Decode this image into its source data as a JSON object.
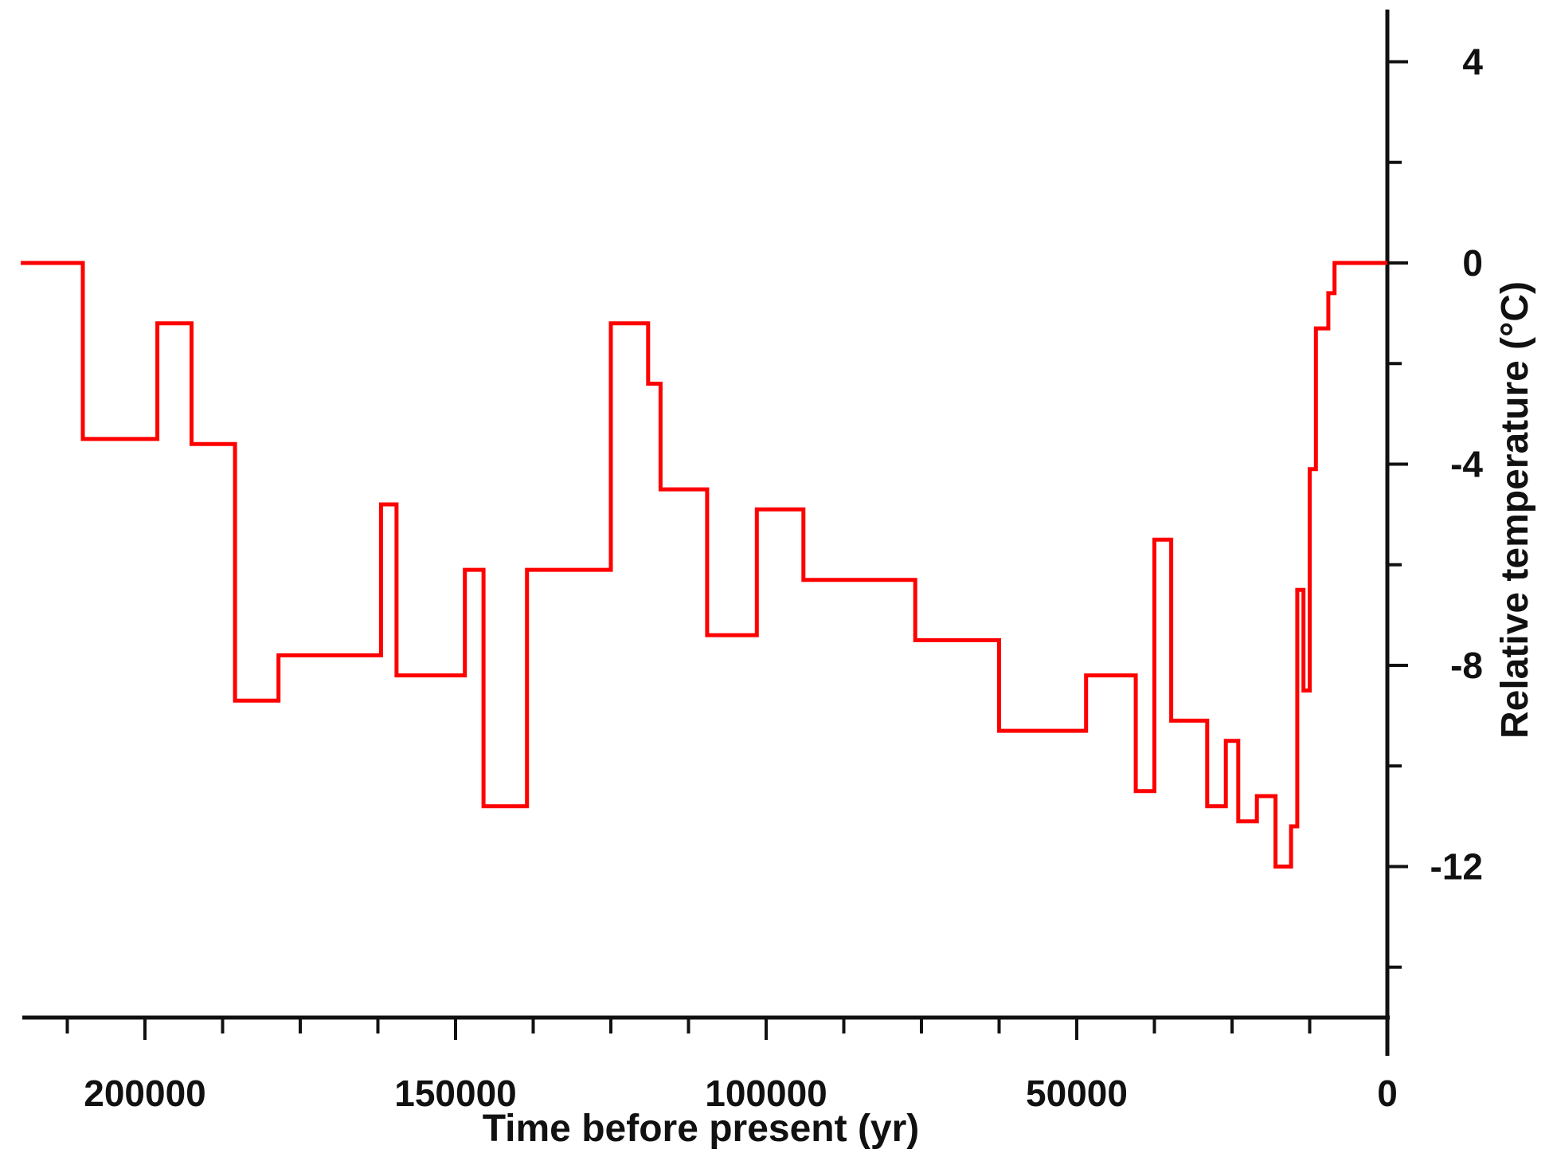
{
  "chart_data": {
    "type": "line",
    "step": true,
    "xlabel": "Time before present (yr)",
    "ylabel": "Relative temperature (°C)",
    "xlim": [
      220000,
      0
    ],
    "ylim": [
      -15,
      5
    ],
    "x_ticks": [
      200000,
      150000,
      100000,
      50000,
      0
    ],
    "x_tick_labels": [
      "200000",
      "150000",
      "100000",
      "50000",
      "0"
    ],
    "x_minor_ticks": [
      212500,
      187500,
      175000,
      162500,
      137500,
      125000,
      112500,
      87500,
      75000,
      62500,
      37500,
      25000,
      12500
    ],
    "y_ticks": [
      4,
      0,
      -4,
      -8,
      -12
    ],
    "y_tick_labels": [
      "4",
      "0",
      "-4",
      "-8",
      "-12"
    ],
    "y_minor_ticks": [
      2,
      -2,
      -6,
      -10,
      -14
    ],
    "y_axis_side": "right",
    "grid": false,
    "series": [
      {
        "color": "#ff0000",
        "points": [
          [
            220000,
            0
          ],
          [
            210000,
            0
          ],
          [
            210000,
            -3.5
          ],
          [
            198000,
            -3.5
          ],
          [
            198000,
            -1.2
          ],
          [
            192500,
            -1.2
          ],
          [
            192500,
            -3.6
          ],
          [
            185500,
            -3.6
          ],
          [
            185500,
            -8.7
          ],
          [
            178500,
            -8.7
          ],
          [
            178500,
            -7.8
          ],
          [
            162000,
            -7.8
          ],
          [
            162000,
            -4.8
          ],
          [
            159500,
            -4.8
          ],
          [
            159500,
            -8.2
          ],
          [
            148500,
            -8.2
          ],
          [
            148500,
            -6.1
          ],
          [
            145500,
            -6.1
          ],
          [
            145500,
            -10.8
          ],
          [
            138500,
            -10.8
          ],
          [
            138500,
            -6.1
          ],
          [
            125000,
            -6.1
          ],
          [
            125000,
            -1.2
          ],
          [
            119000,
            -1.2
          ],
          [
            119000,
            -2.4
          ],
          [
            117000,
            -2.4
          ],
          [
            117000,
            -4.5
          ],
          [
            109500,
            -4.5
          ],
          [
            109500,
            -7.4
          ],
          [
            101500,
            -7.4
          ],
          [
            101500,
            -4.9
          ],
          [
            94000,
            -4.9
          ],
          [
            94000,
            -6.3
          ],
          [
            76000,
            -6.3
          ],
          [
            76000,
            -7.5
          ],
          [
            62500,
            -7.5
          ],
          [
            62500,
            -9.3
          ],
          [
            48500,
            -9.3
          ],
          [
            48500,
            -8.2
          ],
          [
            40500,
            -8.2
          ],
          [
            40500,
            -10.5
          ],
          [
            37500,
            -10.5
          ],
          [
            37500,
            -5.5
          ],
          [
            34800,
            -5.5
          ],
          [
            34800,
            -9.1
          ],
          [
            29000,
            -9.1
          ],
          [
            29000,
            -10.8
          ],
          [
            26000,
            -10.8
          ],
          [
            26000,
            -9.5
          ],
          [
            24000,
            -9.5
          ],
          [
            24000,
            -11.1
          ],
          [
            21000,
            -11.1
          ],
          [
            21000,
            -10.6
          ],
          [
            18000,
            -10.6
          ],
          [
            18000,
            -12
          ],
          [
            15500,
            -12
          ],
          [
            15500,
            -11.2
          ],
          [
            14500,
            -11.2
          ],
          [
            14500,
            -6.5
          ],
          [
            13500,
            -6.5
          ],
          [
            13500,
            -8.5
          ],
          [
            12500,
            -8.5
          ],
          [
            12500,
            -4.1
          ],
          [
            11500,
            -4.1
          ],
          [
            11500,
            -1.3
          ],
          [
            9500,
            -1.3
          ],
          [
            9500,
            -0.6
          ],
          [
            8500,
            -0.6
          ],
          [
            8500,
            0
          ],
          [
            0,
            0
          ]
        ]
      }
    ]
  }
}
